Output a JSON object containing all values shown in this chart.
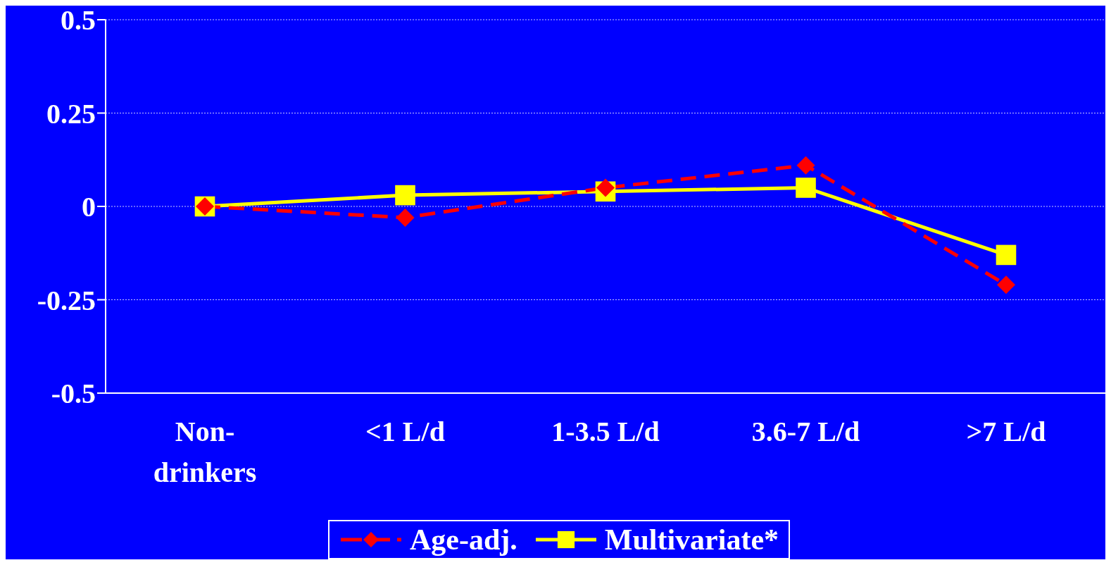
{
  "chart_data": {
    "type": "line",
    "categories": [
      "Non-drinkers",
      "<1 L/d",
      "1-3.5 L/d",
      "3.6-7 L/d",
      ">7 L/d"
    ],
    "series": [
      {
        "name": "Age-adj.",
        "color": "#ff0000",
        "values": [
          0,
          -0.03,
          0.05,
          0.11,
          -0.21
        ],
        "marker": "diamond",
        "line_style": "dashed"
      },
      {
        "name": "Multivariate*",
        "color": "#ffff00",
        "values": [
          0,
          0.03,
          0.04,
          0.05,
          -0.13
        ],
        "marker": "square",
        "line_style": "solid"
      }
    ],
    "ylim": [
      -0.5,
      0.5
    ],
    "yticks": [
      -0.5,
      -0.25,
      0,
      0.25,
      0.5
    ],
    "grid": "y",
    "legend": "bottom"
  }
}
